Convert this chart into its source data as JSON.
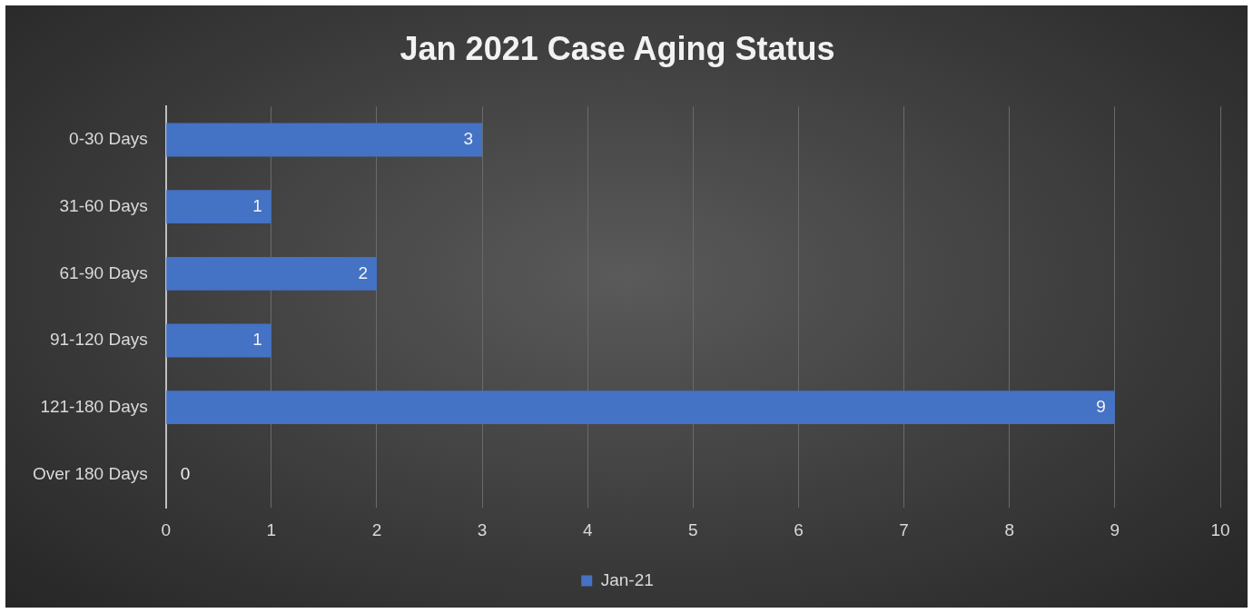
{
  "chart_data": {
    "type": "bar",
    "title": "Jan 2021 Case Aging Status",
    "orientation": "horizontal",
    "categories": [
      "0-30 Days",
      "31-60 Days",
      "61-90 Days",
      "91-120 Days",
      "121-180 Days",
      "Over 180 Days"
    ],
    "series": [
      {
        "name": "Jan-21",
        "color": "#4472c4",
        "values": [
          3,
          1,
          2,
          1,
          9,
          0
        ]
      }
    ],
    "xlim": [
      0,
      10
    ],
    "xticks": [
      0,
      1,
      2,
      3,
      4,
      5,
      6,
      7,
      8,
      9,
      10
    ],
    "grid": "x",
    "legend": "bottom",
    "data_labels": true
  }
}
